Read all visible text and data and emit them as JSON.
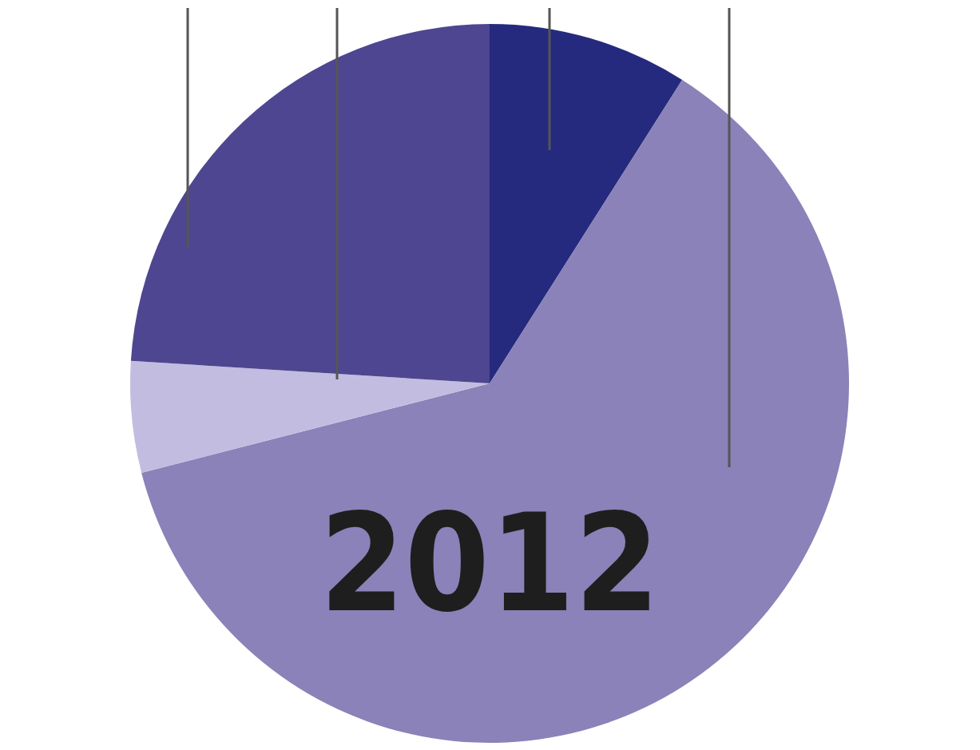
{
  "chart_data": {
    "type": "pie",
    "title": "2012",
    "categories": [
      null,
      null,
      null,
      null
    ],
    "values": [
      9,
      62,
      5,
      24
    ],
    "colors": [
      "#252a7e",
      "#8a82b8",
      "#c2bde0",
      "#4e4690"
    ]
  }
}
